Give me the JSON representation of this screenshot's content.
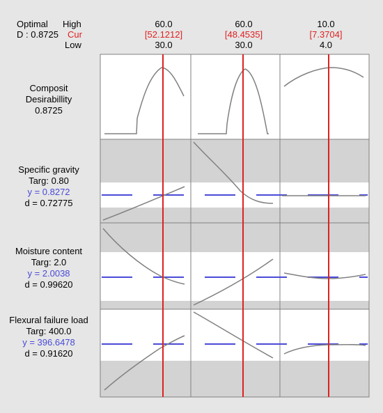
{
  "header": {
    "optimal_label": "Optimal",
    "d_label": "D : 0.8725",
    "high_label": "High",
    "cur_label": "Cur",
    "low_label": "Low"
  },
  "factors": [
    {
      "high": "60.0",
      "cur": "[52.1212]",
      "low": "30.0"
    },
    {
      "high": "60.0",
      "cur": "[48.4535]",
      "low": "30.0"
    },
    {
      "high": "10.0",
      "cur": "[7.3704]",
      "low": "4.0"
    }
  ],
  "rows": [
    {
      "name": "Composit",
      "name2": "Desirabillity",
      "value": "0.8725"
    },
    {
      "name": "Specific gravity",
      "targ": "Targ: 0.80",
      "y": "y = 0.8272",
      "d": "d = 0.72775"
    },
    {
      "name": "Moisture content",
      "targ": "Targ: 2.0",
      "y": "y = 2.0038",
      "d": "d = 0.99620"
    },
    {
      "name": "Flexural failure load",
      "targ": "Targ: 400.0",
      "y": "y = 396.6478",
      "d": "d = 0.91620"
    }
  ],
  "colors": {
    "background": "#e6e6e6",
    "panel": "#ffffff",
    "shade": "#d3d3d3",
    "current_line": "#e02020",
    "target_line": "#4a4ad8",
    "curve": "#808080"
  }
}
